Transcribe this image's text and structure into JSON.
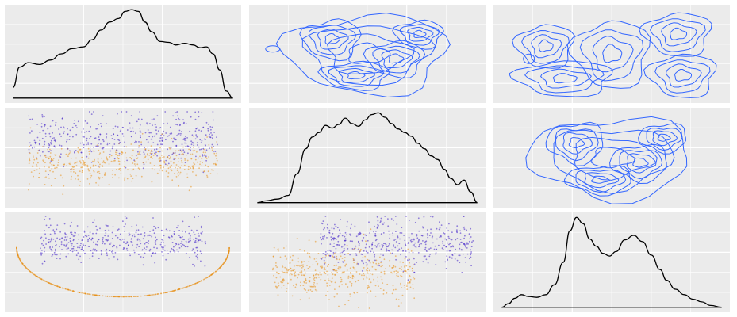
{
  "chart_data": [
    {
      "type": "line",
      "row": 1,
      "col": 1,
      "title": "",
      "xlabel": "",
      "ylabel": "",
      "x": [
        0,
        0.03,
        0.07,
        0.12,
        0.17,
        0.22,
        0.27,
        0.32,
        0.36,
        0.4,
        0.44,
        0.48,
        0.51,
        0.54,
        0.57,
        0.6,
        0.63,
        0.67,
        0.71,
        0.74,
        0.78,
        0.82,
        0.85,
        0.88,
        0.91,
        0.94,
        0.97,
        1.0
      ],
      "y": [
        0.12,
        0.35,
        0.4,
        0.38,
        0.43,
        0.5,
        0.56,
        0.58,
        0.66,
        0.77,
        0.86,
        0.9,
        0.98,
        1.0,
        0.98,
        0.86,
        0.75,
        0.64,
        0.63,
        0.6,
        0.62,
        0.6,
        0.57,
        0.58,
        0.5,
        0.32,
        0.08,
        0.0
      ],
      "line_color": "#000000"
    },
    {
      "type": "contour",
      "row": 1,
      "col": 2,
      "title": "",
      "xlabel": "",
      "ylabel": "",
      "line_color": "#3366ff"
    },
    {
      "type": "contour",
      "row": 1,
      "col": 3,
      "title": "",
      "xlabel": "",
      "ylabel": "",
      "line_color": "#3366ff"
    },
    {
      "type": "scatter",
      "row": 2,
      "col": 1,
      "title": "",
      "xlabel": "",
      "ylabel": "",
      "point_colors": [
        "#3f1fc8",
        "#e8921c"
      ]
    },
    {
      "type": "line",
      "row": 2,
      "col": 2,
      "title": "",
      "xlabel": "",
      "ylabel": "",
      "x": [
        0,
        0.04,
        0.09,
        0.14,
        0.18,
        0.22,
        0.25,
        0.28,
        0.31,
        0.34,
        0.37,
        0.4,
        0.43,
        0.46,
        0.49,
        0.52,
        0.55,
        0.58,
        0.61,
        0.64,
        0.67,
        0.7,
        0.73,
        0.76,
        0.79,
        0.82,
        0.85,
        0.88,
        0.91,
        0.94,
        0.97,
        1.0
      ],
      "y": [
        0.0,
        0.02,
        0.04,
        0.08,
        0.32,
        0.6,
        0.73,
        0.78,
        0.86,
        0.83,
        0.87,
        0.94,
        0.88,
        0.85,
        0.92,
        0.98,
        1.0,
        0.95,
        0.88,
        0.82,
        0.78,
        0.74,
        0.66,
        0.6,
        0.52,
        0.48,
        0.37,
        0.27,
        0.2,
        0.25,
        0.12,
        0.0
      ],
      "line_color": "#000000"
    },
    {
      "type": "contour",
      "row": 2,
      "col": 3,
      "title": "",
      "xlabel": "",
      "ylabel": "",
      "line_color": "#3366ff"
    },
    {
      "type": "scatter",
      "row": 3,
      "col": 1,
      "title": "",
      "xlabel": "",
      "ylabel": "",
      "point_colors": [
        "#3f1fc8",
        "#e8921c"
      ]
    },
    {
      "type": "scatter",
      "row": 3,
      "col": 2,
      "title": "",
      "xlabel": "",
      "ylabel": "",
      "point_colors": [
        "#3f1fc8",
        "#e8921c"
      ]
    },
    {
      "type": "line",
      "row": 3,
      "col": 3,
      "title": "",
      "xlabel": "",
      "ylabel": "",
      "x": [
        0,
        0.03,
        0.06,
        0.09,
        0.12,
        0.16,
        0.2,
        0.24,
        0.28,
        0.31,
        0.34,
        0.37,
        0.4,
        0.43,
        0.46,
        0.49,
        0.52,
        0.56,
        0.6,
        0.64,
        0.68,
        0.72,
        0.75,
        0.79,
        0.83,
        0.87,
        0.91,
        0.95,
        1.0
      ],
      "y": [
        0.0,
        0.04,
        0.1,
        0.14,
        0.12,
        0.11,
        0.14,
        0.25,
        0.5,
        0.85,
        1.0,
        0.93,
        0.76,
        0.68,
        0.6,
        0.57,
        0.62,
        0.75,
        0.8,
        0.73,
        0.58,
        0.42,
        0.3,
        0.2,
        0.14,
        0.09,
        0.06,
        0.02,
        0.0
      ],
      "line_color": "#000000"
    }
  ]
}
